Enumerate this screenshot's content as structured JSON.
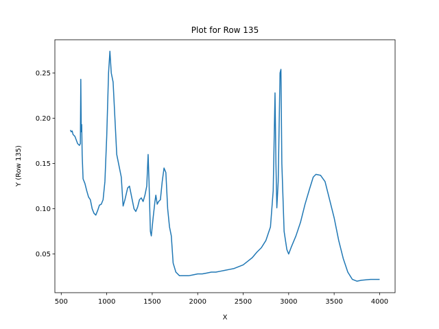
{
  "chart_data": {
    "type": "line",
    "title": "Plot for Row 135",
    "x_label": "X",
    "y_label": "Y (Row 135)",
    "color": "#1f77b4",
    "grid": false,
    "x": [
      600,
      610,
      620,
      630,
      650,
      680,
      700,
      710,
      715,
      720,
      725,
      730,
      740,
      760,
      780,
      800,
      820,
      840,
      860,
      880,
      900,
      920,
      940,
      960,
      980,
      1000,
      1020,
      1035,
      1050,
      1070,
      1090,
      1110,
      1130,
      1160,
      1180,
      1200,
      1230,
      1250,
      1270,
      1300,
      1320,
      1340,
      1360,
      1380,
      1400,
      1420,
      1440,
      1455,
      1465,
      1480,
      1490,
      1510,
      1530,
      1540,
      1555,
      1570,
      1590,
      1610,
      1630,
      1650,
      1670,
      1690,
      1710,
      1730,
      1760,
      1800,
      1850,
      1900,
      1950,
      2000,
      2050,
      2100,
      2150,
      2200,
      2250,
      2300,
      2350,
      2400,
      2450,
      2500,
      2550,
      2600,
      2650,
      2700,
      2750,
      2800,
      2830,
      2850,
      2860,
      2870,
      2885,
      2905,
      2915,
      2925,
      2950,
      2980,
      3000,
      3030,
      3080,
      3130,
      3180,
      3230,
      3270,
      3300,
      3350,
      3400,
      3450,
      3500,
      3550,
      3600,
      3650,
      3700,
      3750,
      3800,
      3900,
      4000
    ],
    "values": [
      0.187,
      0.185,
      0.186,
      0.182,
      0.18,
      0.172,
      0.17,
      0.172,
      0.243,
      0.185,
      0.193,
      0.16,
      0.133,
      0.128,
      0.12,
      0.113,
      0.11,
      0.1,
      0.095,
      0.093,
      0.098,
      0.104,
      0.105,
      0.11,
      0.13,
      0.18,
      0.25,
      0.274,
      0.25,
      0.24,
      0.2,
      0.16,
      0.15,
      0.135,
      0.103,
      0.11,
      0.123,
      0.125,
      0.115,
      0.1,
      0.097,
      0.102,
      0.11,
      0.112,
      0.108,
      0.115,
      0.125,
      0.16,
      0.13,
      0.075,
      0.07,
      0.09,
      0.108,
      0.115,
      0.105,
      0.108,
      0.11,
      0.13,
      0.145,
      0.14,
      0.1,
      0.08,
      0.07,
      0.04,
      0.03,
      0.026,
      0.026,
      0.026,
      0.027,
      0.028,
      0.028,
      0.029,
      0.03,
      0.03,
      0.031,
      0.032,
      0.033,
      0.034,
      0.036,
      0.038,
      0.042,
      0.046,
      0.052,
      0.057,
      0.065,
      0.08,
      0.12,
      0.228,
      0.15,
      0.101,
      0.13,
      0.25,
      0.254,
      0.15,
      0.075,
      0.055,
      0.05,
      0.058,
      0.07,
      0.085,
      0.105,
      0.122,
      0.135,
      0.138,
      0.137,
      0.13,
      0.11,
      0.09,
      0.065,
      0.045,
      0.03,
      0.022,
      0.02,
      0.021,
      0.022,
      0.022
    ],
    "xlim": [
      430,
      4170
    ],
    "ylim": [
      0.0073,
      0.2867
    ],
    "xticks": [
      500,
      1000,
      1500,
      2000,
      2500,
      3000,
      3500,
      4000
    ],
    "yticks": [
      0.05,
      {
        "value": 0.1,
        "label": "0.10"
      },
      0.15,
      {
        "value": 0.2,
        "label": "0.20"
      },
      0.25
    ]
  }
}
